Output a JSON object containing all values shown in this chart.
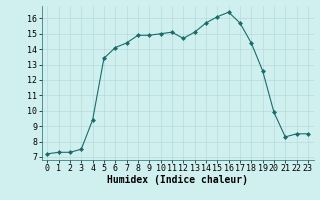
{
  "x": [
    0,
    1,
    2,
    3,
    4,
    5,
    6,
    7,
    8,
    9,
    10,
    11,
    12,
    13,
    14,
    15,
    16,
    17,
    18,
    19,
    20,
    21,
    22,
    23
  ],
  "y": [
    7.2,
    7.3,
    7.3,
    7.5,
    9.4,
    13.4,
    14.1,
    14.4,
    14.9,
    14.9,
    15.0,
    15.1,
    14.7,
    15.1,
    15.7,
    16.1,
    16.4,
    15.7,
    14.4,
    12.6,
    9.9,
    8.3,
    8.5,
    8.5
  ],
  "line_color": "#1a6b6b",
  "marker_color": "#1a6b6b",
  "bg_color": "#d0f0f0",
  "grid_color": "#b8dada",
  "xlabel": "Humidex (Indice chaleur)",
  "ylim": [
    6.8,
    16.8
  ],
  "xlim": [
    -0.5,
    23.5
  ],
  "yticks": [
    7,
    8,
    9,
    10,
    11,
    12,
    13,
    14,
    15,
    16
  ],
  "xticks": [
    0,
    1,
    2,
    3,
    4,
    5,
    6,
    7,
    8,
    9,
    10,
    11,
    12,
    13,
    14,
    15,
    16,
    17,
    18,
    19,
    20,
    21,
    22,
    23
  ],
  "xlabel_fontsize": 7,
  "tick_fontsize": 6,
  "marker_size": 2.0,
  "line_width": 0.8
}
